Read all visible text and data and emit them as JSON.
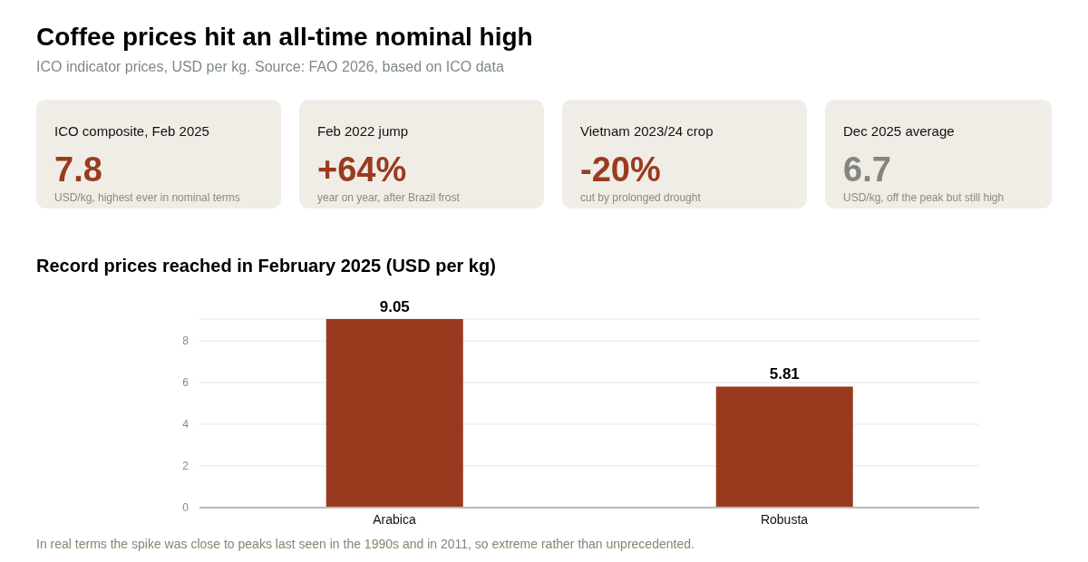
{
  "chart_data": [
    {
      "type": "other",
      "title": "Coffee prices hit an all-time nominal high",
      "subtitle": "ICO indicator prices, USD per kg. Source: FAO 2026, based on ICO data"
    },
    {
      "type": "other",
      "title": "ICO composite, Feb 2025",
      "annotations": [
        "7.8",
        "USD/kg, highest ever in nominal terms"
      ]
    },
    {
      "type": "other",
      "title": "Feb 2022 jump",
      "annotations": [
        "+64%",
        "year on year, after Brazil frost"
      ]
    },
    {
      "type": "other",
      "title": "Vietnam 2023/24 crop",
      "annotations": [
        "-20%",
        "cut by prolonged drought"
      ]
    },
    {
      "type": "other",
      "title": "Dec 2025 average",
      "annotations": [
        "6.7",
        "USD/kg, off the peak but still high"
      ]
    },
    {
      "type": "bar",
      "title": "Record prices reached in February 2025 (USD per kg)",
      "categories": [
        "Arabica",
        "Robusta"
      ],
      "values": [
        9.05,
        5.81
      ],
      "color": "#993a1f",
      "ylim": [
        0,
        9.05
      ],
      "yticks": [
        0,
        2,
        4,
        6,
        8
      ],
      "grid": "y",
      "data_labels": true,
      "annotations": [
        "In real terms the spike was close to peaks last seen in the 1990s and in 2011, so extreme rather than unprecedented."
      ]
    }
  ]
}
